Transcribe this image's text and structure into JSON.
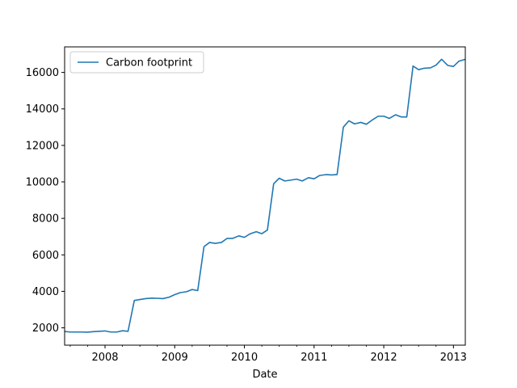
{
  "chart_data": {
    "type": "line",
    "title": "",
    "xlabel": "Date",
    "ylabel": "",
    "x_tick_labels": [
      "2008",
      "2009",
      "2010",
      "2011",
      "2012",
      "2013"
    ],
    "y_tick_labels": [
      "2000",
      "4000",
      "6000",
      "8000",
      "10000",
      "12000",
      "14000",
      "16000"
    ],
    "x_ticks": [
      2008,
      2009,
      2010,
      2011,
      2012,
      2013
    ],
    "y_ticks": [
      2000,
      4000,
      6000,
      8000,
      10000,
      12000,
      14000,
      16000
    ],
    "xlim": [
      2007.42,
      2013.17
    ],
    "ylim": [
      1050,
      17400
    ],
    "grid": false,
    "legend_position": "upper-left",
    "series": [
      {
        "name": "Carbon footprint",
        "color": "#1f77b4",
        "x": [
          2007.42,
          2007.5,
          2007.58,
          2007.67,
          2007.75,
          2007.83,
          2007.92,
          2008.0,
          2008.08,
          2008.17,
          2008.25,
          2008.33,
          2008.42,
          2008.5,
          2008.58,
          2008.67,
          2008.75,
          2008.83,
          2008.92,
          2009.0,
          2009.08,
          2009.17,
          2009.25,
          2009.33,
          2009.42,
          2009.5,
          2009.58,
          2009.67,
          2009.75,
          2009.83,
          2009.92,
          2010.0,
          2010.08,
          2010.17,
          2010.25,
          2010.33,
          2010.42,
          2010.5,
          2010.58,
          2010.67,
          2010.75,
          2010.83,
          2010.92,
          2011.0,
          2011.08,
          2011.17,
          2011.25,
          2011.33,
          2011.42,
          2011.5,
          2011.58,
          2011.67,
          2011.75,
          2011.83,
          2011.92,
          2012.0,
          2012.08,
          2012.17,
          2012.25,
          2012.33,
          2012.42,
          2012.5,
          2012.58,
          2012.67,
          2012.75,
          2012.83,
          2012.92,
          2013.0,
          2013.08,
          2013.17
        ],
        "y": [
          1800,
          1770,
          1770,
          1770,
          1760,
          1790,
          1810,
          1830,
          1770,
          1770,
          1840,
          1810,
          3500,
          3550,
          3600,
          3630,
          3620,
          3600,
          3680,
          3820,
          3930,
          3980,
          4100,
          4040,
          6450,
          6680,
          6630,
          6680,
          6900,
          6900,
          7040,
          6960,
          7150,
          7270,
          7160,
          7360,
          9900,
          10200,
          10050,
          10100,
          10150,
          10050,
          10230,
          10170,
          10350,
          10400,
          10380,
          10400,
          13000,
          13350,
          13180,
          13260,
          13160,
          13380,
          13600,
          13600,
          13480,
          13680,
          13560,
          13560,
          16350,
          16150,
          16230,
          16250,
          16400,
          16720,
          16380,
          16330,
          16620,
          16720
        ]
      }
    ]
  }
}
